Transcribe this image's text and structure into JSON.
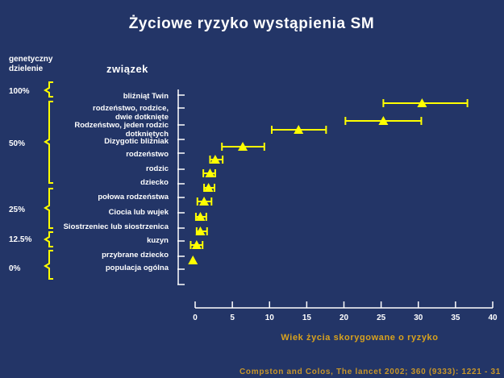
{
  "colors": {
    "background": "#233567",
    "axis": "#ffffff",
    "marker": "#ffff00",
    "bracket": "#ffff00",
    "axis_label": "#d9a21d",
    "source": "#c8962a"
  },
  "source": "Compston and Colos, The lancet 2002; 360 (9333): 1221 - 31",
  "chart_data": {
    "type": "scatter",
    "title": "Życiowe ryzyko wystąpienia SM",
    "xlabel": "Wiek życia skorygowane o ryzyko",
    "xlim": [
      0,
      40
    ],
    "xticks": [
      0,
      5,
      10,
      15,
      20,
      25,
      30,
      35,
      40
    ],
    "grid": false,
    "y_header_left": [
      "genetyczny",
      "dzielenie"
    ],
    "y_header_right": "związek",
    "relations": [
      {
        "label": [
          "bliźniąt Twin"
        ],
        "value": 30.5,
        "low": 25.3,
        "high": 36.6
      },
      {
        "label": [
          "rodzeństwo, rodzice,",
          "dwie dotknięte"
        ],
        "value": null,
        "low": null,
        "high": null
      },
      {
        "label": [
          "Rodzeństwo, jeden rodzic",
          "dotkniętych"
        ],
        "value": 25.3,
        "low": 20.2,
        "high": 30.4
      },
      {
        "label": [
          "Dizygotic bliźniak"
        ],
        "value": 13.9,
        "low": 10.3,
        "high": 17.6
      },
      {
        "label": [
          "rodzeństwo"
        ],
        "value": 6.4,
        "low": 3.6,
        "high": 9.3
      },
      {
        "label": [
          "rodzic"
        ],
        "value": 2.7,
        "low": 2.0,
        "high": 3.7
      },
      {
        "label": [
          "dziecko"
        ],
        "value": 2.0,
        "low": 1.1,
        "high": 2.7
      },
      {
        "label": [
          "połowa rodzeństwa"
        ],
        "value": 1.8,
        "low": 1.2,
        "high": 2.6
      },
      {
        "label": [
          "Ciocia lub wujek"
        ],
        "value": 1.2,
        "low": 0.3,
        "high": 2.2
      },
      {
        "label": [
          "Siostrzeniec lub siostrzenica"
        ],
        "value": 0.7,
        "low": 0.1,
        "high": 1.5
      },
      {
        "label": [
          "kuzyn"
        ],
        "value": 0.7,
        "low": 0.2,
        "high": 1.6
      },
      {
        "label": [
          "przybrane dziecko"
        ],
        "value": 0.2,
        "low": -0.6,
        "high": 1.0
      },
      {
        "label": [
          "populacja ogólna"
        ],
        "value": -0.3,
        "low": null,
        "high": null
      }
    ],
    "sharing_groups": [
      {
        "label": "100%",
        "first": 0,
        "last": 0
      },
      {
        "label": "50%",
        "first": 1,
        "last": 6
      },
      {
        "label": "25%",
        "first": 7,
        "last": 9
      },
      {
        "label": "12.5%",
        "first": 10,
        "last": 10
      },
      {
        "label": "0%",
        "first": 11,
        "last": 12
      }
    ]
  }
}
